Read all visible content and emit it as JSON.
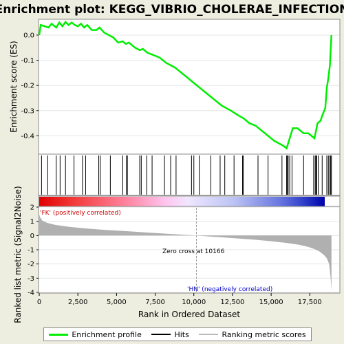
{
  "chart_data": [
    {
      "type": "line",
      "title": "Enrichment plot: KEGG_VIBRIO_CHOLERAE_INFECTION",
      "ylabel": "Enrichment score (ES)",
      "ylim": [
        -0.47,
        0.06
      ],
      "xlim": [
        0,
        19400
      ],
      "yticks": [
        0.0,
        -0.1,
        -0.2,
        -0.3,
        -0.4
      ],
      "ytick_labels": [
        "0.0",
        "-0.1",
        "-0.2",
        "-0.3",
        "-0.4"
      ],
      "series": [
        {
          "name": "Enrichment profile",
          "color": "#00ee00",
          "x": [
            0,
            100,
            600,
            800,
            1100,
            1300,
            1500,
            1700,
            1900,
            2100,
            2300,
            2500,
            2700,
            2900,
            3100,
            3400,
            3700,
            3900,
            4200,
            4500,
            4800,
            5100,
            5400,
            5600,
            5800,
            6200,
            6500,
            6700,
            7000,
            7400,
            7800,
            8200,
            8800,
            9400,
            10000,
            10600,
            11200,
            11800,
            12400,
            12900,
            13200,
            13600,
            14000,
            14400,
            14800,
            15200,
            15500,
            15800,
            16000,
            16100,
            16200,
            16400,
            16700,
            17100,
            17400,
            17800,
            17900,
            18000,
            18200,
            18300,
            18500,
            18600,
            18700,
            18800,
            18850,
            18900
          ],
          "values": [
            0.0,
            0.04,
            0.03,
            0.045,
            0.03,
            0.05,
            0.035,
            0.052,
            0.04,
            0.05,
            0.04,
            0.035,
            0.045,
            0.03,
            0.04,
            0.02,
            0.02,
            0.03,
            0.01,
            0.0,
            -0.01,
            -0.03,
            -0.025,
            -0.035,
            -0.03,
            -0.05,
            -0.06,
            -0.055,
            -0.07,
            -0.08,
            -0.09,
            -0.11,
            -0.13,
            -0.16,
            -0.19,
            -0.22,
            -0.25,
            -0.28,
            -0.3,
            -0.32,
            -0.33,
            -0.35,
            -0.36,
            -0.38,
            -0.4,
            -0.42,
            -0.43,
            -0.44,
            -0.45,
            -0.43,
            -0.41,
            -0.37,
            -0.37,
            -0.39,
            -0.39,
            -0.41,
            -0.38,
            -0.35,
            -0.34,
            -0.32,
            -0.29,
            -0.21,
            -0.17,
            -0.12,
            -0.06,
            0.0
          ]
        }
      ]
    },
    {
      "type": "scatter",
      "series": [
        {
          "name": "Hits",
          "color": "#000000",
          "x": [
            150,
            550,
            1100,
            1350,
            1700,
            2250,
            2800,
            3000,
            3850,
            3950,
            4600,
            5400,
            5650,
            5700,
            6500,
            6600,
            6950,
            7300,
            8100,
            8500,
            8850,
            9850,
            10000,
            10350,
            11100,
            11700,
            12000,
            12600,
            13150,
            13200,
            14150,
            14800,
            15700,
            16000,
            16050,
            16100,
            16200,
            16350,
            17100,
            17750,
            17850,
            17900,
            17950,
            18050,
            18300,
            18600,
            18700,
            18800,
            18850,
            18900
          ]
        }
      ]
    },
    {
      "type": "area",
      "ylabel": "Ranked list metric (Signal2Noise)",
      "xlabel": "Rank in Ordered Dataset",
      "ylim": [
        -4,
        2
      ],
      "xlim": [
        0,
        19400
      ],
      "yticks": [
        2,
        1,
        0,
        -1,
        -2,
        -3,
        -4
      ],
      "ytick_labels": [
        "2",
        "1",
        "0",
        "-1",
        "-2",
        "-3",
        "-4"
      ],
      "xticks": [
        0,
        2500,
        5000,
        7500,
        10000,
        12500,
        15000,
        17500
      ],
      "xtick_labels": [
        "0",
        "2,500",
        "5,000",
        "7,500",
        "10,000",
        "12,500",
        "15,000",
        "17,500"
      ],
      "series": [
        {
          "name": "Ranking metric scores",
          "color": "#b0b0b0",
          "x": [
            0,
            50,
            200,
            500,
            1000,
            2000,
            3000,
            4000,
            5000,
            6000,
            7000,
            8000,
            9000,
            10166,
            11000,
            12000,
            13000,
            14000,
            15000,
            16000,
            16800,
            17400,
            17800,
            18100,
            18400,
            18600,
            18750,
            18850,
            18900
          ],
          "values": [
            1.5,
            1.3,
            1.05,
            0.9,
            0.75,
            0.6,
            0.5,
            0.42,
            0.35,
            0.28,
            0.21,
            0.14,
            0.08,
            0.0,
            -0.07,
            -0.14,
            -0.22,
            -0.3,
            -0.4,
            -0.52,
            -0.65,
            -0.8,
            -0.95,
            -1.1,
            -1.35,
            -1.6,
            -2.0,
            -3.0,
            -3.9
          ]
        }
      ],
      "annotations": [
        "'FK' (positively correlated)",
        "Zero cross at 10166",
        "'HN' (negatively correlated)"
      ]
    }
  ],
  "legend": {
    "items": [
      "Enrichment profile",
      "Hits",
      "Ranking metric scores"
    ]
  },
  "colors": {
    "es_line": "#00ee00",
    "positive_label": "#cc0000",
    "negative_label": "#0000cc",
    "background": "#eeeee0"
  }
}
